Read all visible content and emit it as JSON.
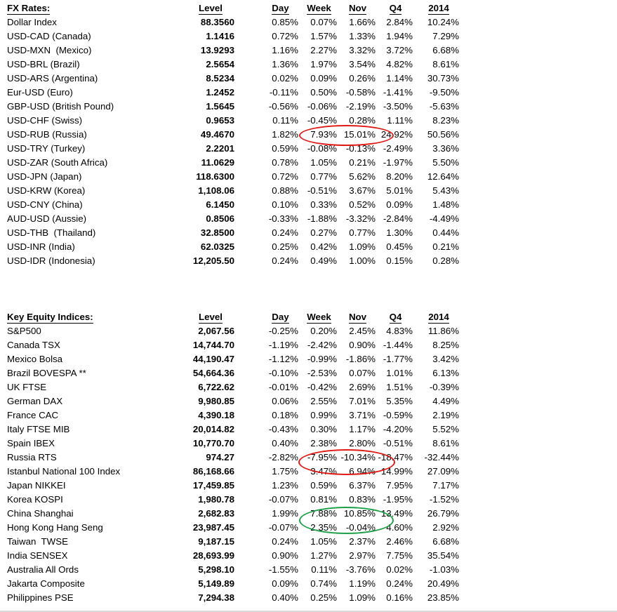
{
  "colors": {
    "text": "#000000",
    "circle_red": "#e01a14",
    "circle_green": "#1fa048"
  },
  "fx_table": {
    "title": "FX Rates:",
    "columns": [
      "Level",
      "Day",
      "Week",
      "Nov",
      "Q4",
      "2014"
    ],
    "rows": [
      {
        "name": "Dollar Index",
        "level": "88.3560",
        "day": "0.85%",
        "week": "0.07%",
        "nov": "1.66%",
        "q4": "2.84%",
        "y2014": "10.24%"
      },
      {
        "name": "USD-CAD (Canada)",
        "level": "1.1416",
        "day": "0.72%",
        "week": "1.57%",
        "nov": "1.33%",
        "q4": "1.94%",
        "y2014": "7.29%"
      },
      {
        "name": "USD-MXN  (Mexico)",
        "level": "13.9293",
        "day": "1.16%",
        "week": "2.27%",
        "nov": "3.32%",
        "q4": "3.72%",
        "y2014": "6.68%"
      },
      {
        "name": "USD-BRL (Brazil)",
        "level": "2.5654",
        "day": "1.36%",
        "week": "1.97%",
        "nov": "3.54%",
        "q4": "4.82%",
        "y2014": "8.61%"
      },
      {
        "name": "USD-ARS (Argentina)",
        "level": "8.5234",
        "day": "0.02%",
        "week": "0.09%",
        "nov": "0.26%",
        "q4": "1.14%",
        "y2014": "30.73%"
      },
      {
        "name": "Eur-USD (Euro)",
        "level": "1.2452",
        "day": "-0.11%",
        "week": "0.50%",
        "nov": "-0.58%",
        "q4": "-1.41%",
        "y2014": "-9.50%"
      },
      {
        "name": "GBP-USD (British Pound)",
        "level": "1.5645",
        "day": "-0.56%",
        "week": "-0.06%",
        "nov": "-2.19%",
        "q4": "-3.50%",
        "y2014": "-5.63%"
      },
      {
        "name": "USD-CHF (Swiss)",
        "level": "0.9653",
        "day": "0.11%",
        "week": "-0.45%",
        "nov": "0.28%",
        "q4": "1.11%",
        "y2014": "8.23%"
      },
      {
        "name": "USD-RUB (Russia)",
        "level": "49.4670",
        "day": "1.82%",
        "week": "7.93%",
        "nov": "15.01%",
        "q4": "24.92%",
        "y2014": "50.56%"
      },
      {
        "name": "USD-TRY (Turkey)",
        "level": "2.2201",
        "day": "0.59%",
        "week": "-0.08%",
        "nov": "-0.13%",
        "q4": "-2.49%",
        "y2014": "3.36%"
      },
      {
        "name": "USD-ZAR (South Africa)",
        "level": "11.0629",
        "day": "0.78%",
        "week": "1.05%",
        "nov": "0.21%",
        "q4": "-1.97%",
        "y2014": "5.50%"
      },
      {
        "name": "USD-JPN (Japan)",
        "level": "118.6300",
        "day": "0.72%",
        "week": "0.77%",
        "nov": "5.62%",
        "q4": "8.20%",
        "y2014": "12.64%"
      },
      {
        "name": "USD-KRW (Korea)",
        "level": "1,108.06",
        "day": "0.88%",
        "week": "-0.51%",
        "nov": "3.67%",
        "q4": "5.01%",
        "y2014": "5.43%"
      },
      {
        "name": "USD-CNY (China)",
        "level": "6.1450",
        "day": "0.10%",
        "week": "0.33%",
        "nov": "0.52%",
        "q4": "0.09%",
        "y2014": "1.48%"
      },
      {
        "name": "AUD-USD (Aussie)",
        "level": "0.8506",
        "day": "-0.33%",
        "week": "-1.88%",
        "nov": "-3.32%",
        "q4": "-2.84%",
        "y2014": "-4.49%"
      },
      {
        "name": "USD-THB  (Thailand)",
        "level": "32.8500",
        "day": "0.24%",
        "week": "0.27%",
        "nov": "0.77%",
        "q4": "1.30%",
        "y2014": "0.44%"
      },
      {
        "name": "USD-INR (India)",
        "level": "62.0325",
        "day": "0.25%",
        "week": "0.42%",
        "nov": "1.09%",
        "q4": "0.45%",
        "y2014": "0.21%"
      },
      {
        "name": "USD-IDR (Indonesia)",
        "level": "12,205.50",
        "day": "0.24%",
        "week": "0.49%",
        "nov": "1.00%",
        "q4": "0.15%",
        "y2014": "0.28%"
      }
    ]
  },
  "equity_table": {
    "title": "Key Equity Indices:",
    "columns": [
      "Level",
      "Day",
      "Week",
      "Nov",
      "Q4",
      "2014"
    ],
    "rows": [
      {
        "name": "S&P500",
        "level": "2,067.56",
        "day": "-0.25%",
        "week": "0.20%",
        "nov": "2.45%",
        "q4": "4.83%",
        "y2014": "11.86%"
      },
      {
        "name": "Canada TSX",
        "level": "14,744.70",
        "day": "-1.19%",
        "week": "-2.42%",
        "nov": "0.90%",
        "q4": "-1.44%",
        "y2014": "8.25%"
      },
      {
        "name": "Mexico Bolsa",
        "level": "44,190.47",
        "day": "-1.12%",
        "week": "-0.99%",
        "nov": "-1.86%",
        "q4": "-1.77%",
        "y2014": "3.42%"
      },
      {
        "name": "Brazil BOVESPA **",
        "level": "54,664.36",
        "day": "-0.10%",
        "week": "-2.53%",
        "nov": "0.07%",
        "q4": "1.01%",
        "y2014": "6.13%"
      },
      {
        "name": "UK FTSE",
        "level": "6,722.62",
        "day": "-0.01%",
        "week": "-0.42%",
        "nov": "2.69%",
        "q4": "1.51%",
        "y2014": "-0.39%"
      },
      {
        "name": "German DAX",
        "level": "9,980.85",
        "day": "0.06%",
        "week": "2.55%",
        "nov": "7.01%",
        "q4": "5.35%",
        "y2014": "4.49%"
      },
      {
        "name": "France CAC",
        "level": "4,390.18",
        "day": "0.18%",
        "week": "0.99%",
        "nov": "3.71%",
        "q4": "-0.59%",
        "y2014": "2.19%"
      },
      {
        "name": "Italy FTSE MIB",
        "level": "20,014.82",
        "day": "-0.43%",
        "week": "0.30%",
        "nov": "1.17%",
        "q4": "-4.20%",
        "y2014": "5.52%"
      },
      {
        "name": "Spain IBEX",
        "level": "10,770.70",
        "day": "0.40%",
        "week": "2.38%",
        "nov": "2.80%",
        "q4": "-0.51%",
        "y2014": "8.61%"
      },
      {
        "name": "Russia RTS",
        "level": "974.27",
        "day": "-2.82%",
        "week": "-7.95%",
        "nov": "-10.34%",
        "q4": "-18.47%",
        "y2014": "-32.44%"
      },
      {
        "name": "Istanbul National 100 Index",
        "level": "86,168.66",
        "day": "1.75%",
        "week": "3.47%",
        "nov": "6.94%",
        "q4": "14.99%",
        "y2014": "27.09%"
      },
      {
        "name": "Japan NIKKEI",
        "level": "17,459.85",
        "day": "1.23%",
        "week": "0.59%",
        "nov": "6.37%",
        "q4": "7.95%",
        "y2014": "7.17%"
      },
      {
        "name": "Korea KOSPI",
        "level": "1,980.78",
        "day": "-0.07%",
        "week": "0.81%",
        "nov": "0.83%",
        "q4": "-1.95%",
        "y2014": "-1.52%"
      },
      {
        "name": "China Shanghai",
        "level": "2,682.83",
        "day": "1.99%",
        "week": "7.88%",
        "nov": "10.85%",
        "q4": "13.49%",
        "y2014": "26.79%"
      },
      {
        "name": "Hong Kong Hang Seng",
        "level": "23,987.45",
        "day": "-0.07%",
        "week": "2.35%",
        "nov": "-0.04%",
        "q4": "4.60%",
        "y2014": "2.92%"
      },
      {
        "name": "Taiwan  TWSE",
        "level": "9,187.15",
        "day": "0.24%",
        "week": "1.05%",
        "nov": "2.37%",
        "q4": "2.46%",
        "y2014": "6.68%"
      },
      {
        "name": "India SENSEX",
        "level": "28,693.99",
        "day": "0.90%",
        "week": "1.27%",
        "nov": "2.97%",
        "q4": "7.75%",
        "y2014": "35.54%"
      },
      {
        "name": "Australia All Ords",
        "level": "5,298.10",
        "day": "-1.55%",
        "week": "0.11%",
        "nov": "-3.76%",
        "q4": "0.02%",
        "y2014": "-1.03%"
      },
      {
        "name": "Jakarta Composite",
        "level": "5,149.89",
        "day": "0.09%",
        "week": "0.74%",
        "nov": "1.19%",
        "q4": "0.24%",
        "y2014": "20.49%"
      },
      {
        "name": "Philippines PSE",
        "level": "7,294.38",
        "day": "0.40%",
        "week": "0.25%",
        "nov": "1.09%",
        "q4": "0.16%",
        "y2014": "23.85%"
      }
    ]
  },
  "annotations": [
    {
      "id": "circle-fx-rub",
      "shape": "ellipse",
      "color": "#e01a14",
      "circled_values": [
        "7.93%",
        "15.01%"
      ]
    },
    {
      "id": "circle-eq-rts",
      "shape": "ellipse",
      "color": "#e01a14",
      "circled_values": [
        "-7.95%",
        "-10.34%"
      ]
    },
    {
      "id": "circle-eq-shanghai",
      "shape": "ellipse",
      "color": "#1fa048",
      "circled_values": [
        "7.88%",
        "10.85%"
      ]
    }
  ]
}
